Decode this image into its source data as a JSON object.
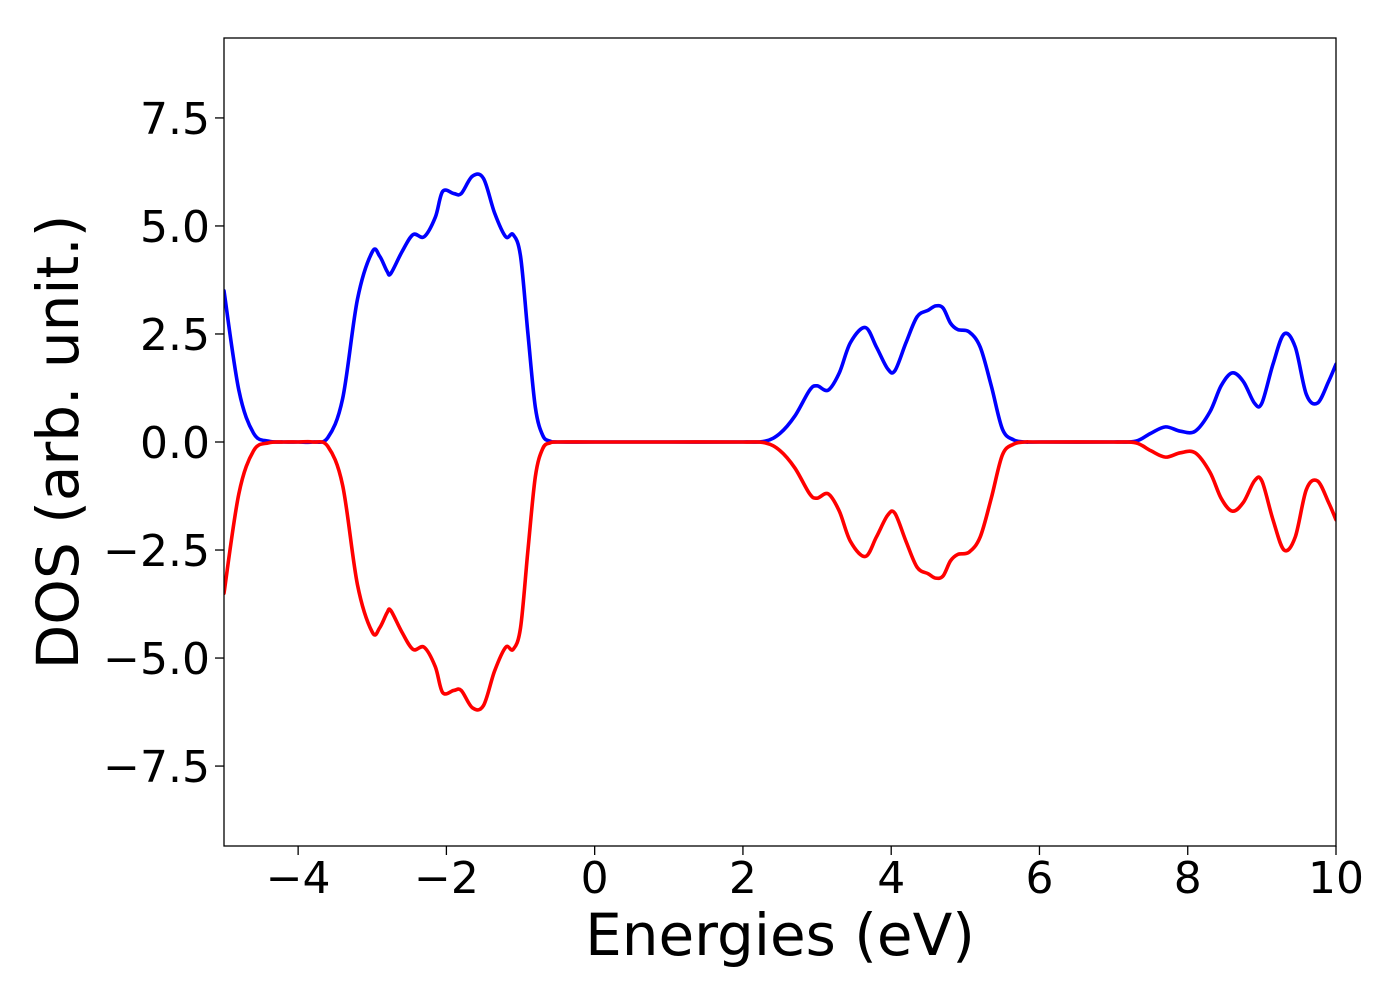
{
  "chart_data": {
    "type": "line",
    "title": "",
    "xlabel": "Energies (eV)",
    "ylabel": "DOS (arb. unit.)",
    "xlim": [
      -5,
      10
    ],
    "ylim": [
      -9.35,
      9.35
    ],
    "x_ticks": [
      -4,
      -2,
      0,
      2,
      4,
      6,
      8,
      10
    ],
    "x_tick_labels": [
      "−4",
      "−2",
      "0",
      "2",
      "4",
      "6",
      "8",
      "10"
    ],
    "y_ticks": [
      7.5,
      5.0,
      2.5,
      0.0,
      -2.5,
      -5.0,
      -7.5
    ],
    "y_tick_labels": [
      "7.5",
      "5.0",
      "2.5",
      "0.0",
      "−2.5",
      "−5.0",
      "−7.5"
    ],
    "grid": false,
    "legend": false,
    "series": [
      {
        "color": "#0000ff",
        "x": [
          -5.0,
          -4.8,
          -4.6,
          -4.4,
          -4.2,
          -4.0,
          -3.8,
          -3.6,
          -3.4,
          -3.2,
          -3.0,
          -2.9,
          -2.8,
          -2.75,
          -2.6,
          -2.45,
          -2.3,
          -2.15,
          -2.05,
          -1.9,
          -1.8,
          -1.65,
          -1.5,
          -1.35,
          -1.2,
          -1.1,
          -1.0,
          -0.9,
          -0.8,
          -0.7,
          -0.6,
          -0.5,
          0.0,
          1.0,
          2.0,
          2.3,
          2.5,
          2.7,
          2.9,
          3.0,
          3.15,
          3.3,
          3.45,
          3.65,
          3.8,
          3.95,
          4.05,
          4.2,
          4.35,
          4.5,
          4.6,
          4.7,
          4.8,
          4.9,
          5.05,
          5.2,
          5.35,
          5.5,
          5.65,
          5.8,
          6.0,
          7.0,
          7.3,
          7.5,
          7.7,
          7.9,
          8.1,
          8.3,
          8.45,
          8.6,
          8.75,
          8.9,
          9.0,
          9.15,
          9.3,
          9.45,
          9.6,
          9.75,
          9.9,
          10.0
        ],
        "y": [
          3.5,
          1.2,
          0.2,
          0.02,
          0.0,
          0.0,
          0.0,
          0.1,
          1.0,
          3.3,
          4.4,
          4.3,
          3.95,
          3.9,
          4.4,
          4.8,
          4.75,
          5.2,
          5.8,
          5.75,
          5.75,
          6.15,
          6.1,
          5.3,
          4.75,
          4.8,
          4.3,
          2.5,
          0.8,
          0.15,
          0.02,
          0.0,
          0.0,
          0.0,
          0.0,
          0.02,
          0.2,
          0.6,
          1.2,
          1.3,
          1.2,
          1.6,
          2.3,
          2.65,
          2.2,
          1.7,
          1.65,
          2.3,
          2.9,
          3.05,
          3.15,
          3.1,
          2.75,
          2.6,
          2.55,
          2.2,
          1.3,
          0.3,
          0.05,
          0.0,
          0.0,
          0.0,
          0.02,
          0.2,
          0.35,
          0.25,
          0.25,
          0.7,
          1.3,
          1.6,
          1.4,
          0.9,
          0.9,
          1.8,
          2.5,
          2.2,
          1.1,
          0.9,
          1.4,
          1.8
        ]
      },
      {
        "color": "#ff0000",
        "x": [
          -5.0,
          -4.8,
          -4.6,
          -4.4,
          -4.2,
          -4.0,
          -3.8,
          -3.6,
          -3.4,
          -3.2,
          -3.0,
          -2.9,
          -2.8,
          -2.75,
          -2.6,
          -2.45,
          -2.3,
          -2.15,
          -2.05,
          -1.9,
          -1.8,
          -1.65,
          -1.5,
          -1.35,
          -1.2,
          -1.1,
          -1.0,
          -0.9,
          -0.8,
          -0.7,
          -0.6,
          -0.5,
          0.0,
          1.0,
          2.0,
          2.3,
          2.5,
          2.7,
          2.9,
          3.0,
          3.15,
          3.3,
          3.45,
          3.65,
          3.8,
          3.95,
          4.05,
          4.2,
          4.35,
          4.5,
          4.6,
          4.7,
          4.8,
          4.9,
          5.05,
          5.2,
          5.35,
          5.5,
          5.65,
          5.8,
          6.0,
          7.0,
          7.3,
          7.5,
          7.7,
          7.9,
          8.1,
          8.3,
          8.45,
          8.6,
          8.75,
          8.9,
          9.0,
          9.15,
          9.3,
          9.45,
          9.6,
          9.75,
          9.9,
          10.0
        ],
        "y": [
          -3.5,
          -1.2,
          -0.2,
          -0.02,
          0.0,
          0.0,
          0.0,
          -0.1,
          -1.0,
          -3.3,
          -4.4,
          -4.3,
          -3.95,
          -3.9,
          -4.4,
          -4.8,
          -4.75,
          -5.2,
          -5.8,
          -5.75,
          -5.75,
          -6.15,
          -6.1,
          -5.3,
          -4.75,
          -4.8,
          -4.3,
          -2.5,
          -0.8,
          -0.15,
          -0.02,
          0.0,
          0.0,
          0.0,
          0.0,
          -0.02,
          -0.2,
          -0.6,
          -1.2,
          -1.3,
          -1.2,
          -1.6,
          -2.3,
          -2.65,
          -2.2,
          -1.7,
          -1.65,
          -2.3,
          -2.9,
          -3.05,
          -3.15,
          -3.1,
          -2.75,
          -2.6,
          -2.55,
          -2.2,
          -1.3,
          -0.3,
          -0.05,
          0.0,
          0.0,
          0.0,
          -0.02,
          -0.2,
          -0.35,
          -0.25,
          -0.25,
          -0.7,
          -1.3,
          -1.6,
          -1.4,
          -0.9,
          -0.9,
          -1.8,
          -2.5,
          -2.2,
          -1.1,
          -0.9,
          -1.4,
          -1.8
        ]
      }
    ]
  }
}
